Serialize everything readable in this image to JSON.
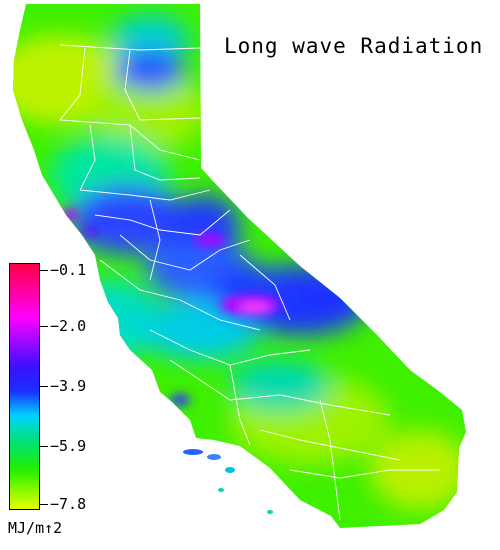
{
  "map": {
    "title": "Long wave Radiation",
    "region": "California"
  },
  "legend": {
    "unit": "MJ/m↑2",
    "ticks": [
      {
        "label": "−0.1",
        "value": -0.1
      },
      {
        "label": "−2.0",
        "value": -2.0
      },
      {
        "label": "−3.9",
        "value": -3.9
      },
      {
        "label": "−5.9",
        "value": -5.9
      },
      {
        "label": "−7.8",
        "value": -7.8
      }
    ],
    "colors": {
      "max": "#ff0044",
      "c2": "#ff00ff",
      "c3": "#3a10ff",
      "c4": "#1a30ff",
      "c5": "#00d4ff",
      "c6": "#00e07a",
      "c7": "#22f000",
      "min": "#e6ff00"
    }
  }
}
